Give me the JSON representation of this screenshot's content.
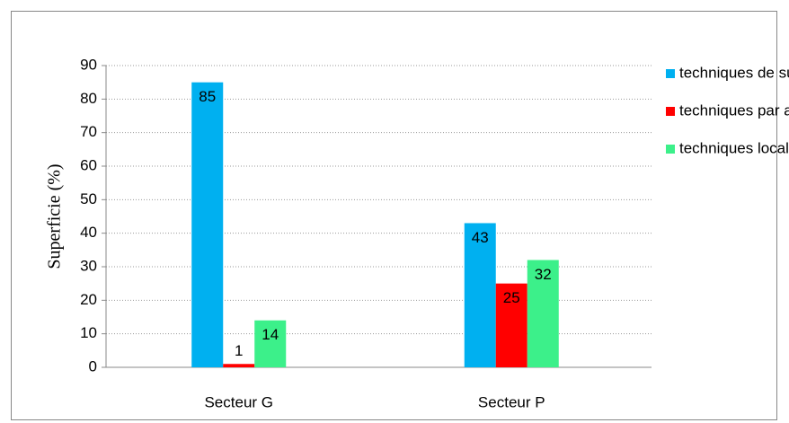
{
  "chart_data": {
    "type": "bar",
    "y_label": "Superficie (%)",
    "categories": [
      "Secteur G",
      "Secteur P"
    ],
    "series": [
      {
        "name": "techniques de surface",
        "color": "#00b0f0",
        "values": [
          85,
          43
        ]
      },
      {
        "name": "techniques par aspersion",
        "color": "#ff0000",
        "values": [
          1,
          25
        ]
      },
      {
        "name": "techniques localisée",
        "color": "#3cf08a",
        "values": [
          14,
          32
        ]
      }
    ],
    "ylim": [
      0,
      90
    ],
    "yticks": [
      0,
      10,
      20,
      30,
      40,
      50,
      60,
      70,
      80,
      90
    ],
    "grid": true,
    "legend": "right",
    "data_labels": true
  }
}
